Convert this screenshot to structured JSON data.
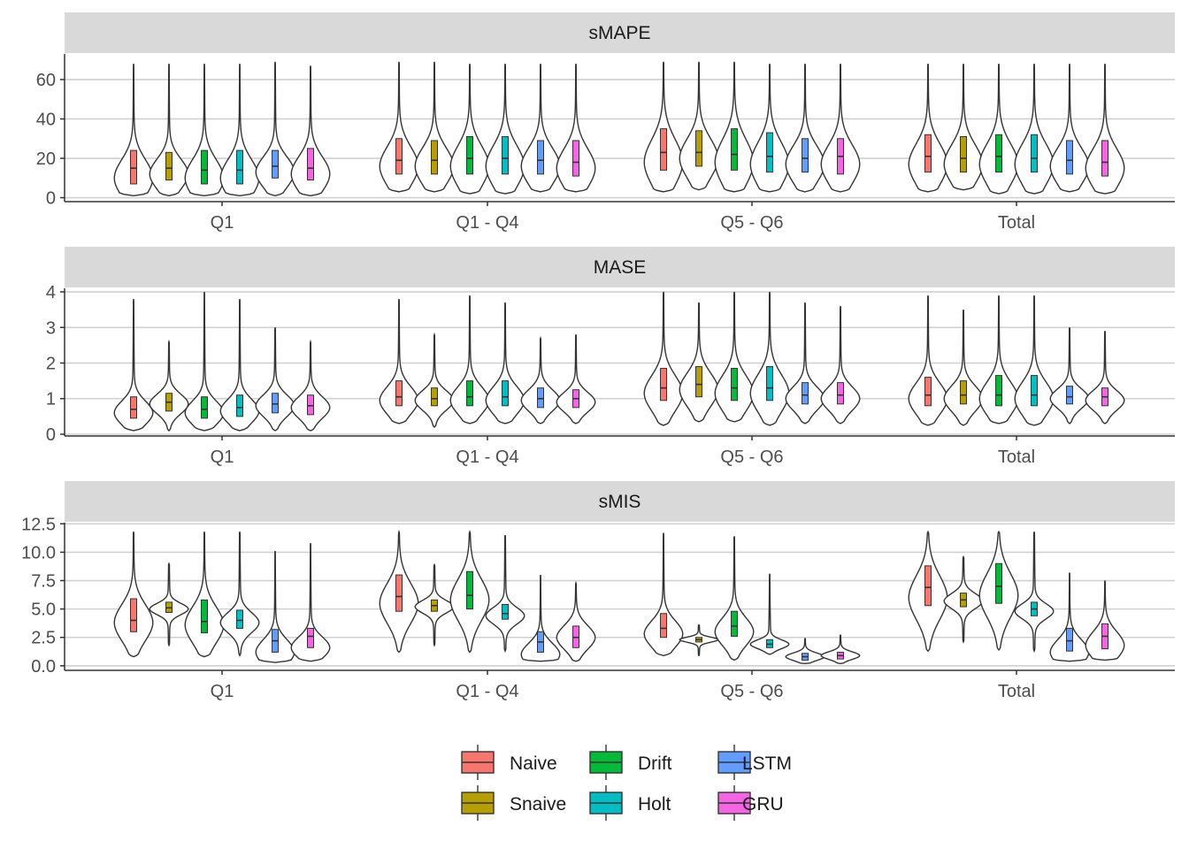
{
  "chart_data": {
    "type": "violin",
    "groups": [
      "Q1",
      "Q1 - Q4",
      "Q5 - Q6",
      "Total"
    ],
    "legend": {
      "position": "bottom",
      "entries": [
        {
          "name": "Naive",
          "color": "#F8766D"
        },
        {
          "name": "Snaive",
          "color": "#B79F00"
        },
        {
          "name": "Drift",
          "color": "#00BA38"
        },
        {
          "name": "Holt",
          "color": "#00BFC4"
        },
        {
          "name": "LSTM",
          "color": "#619CFF"
        },
        {
          "name": "GRU",
          "color": "#F564E3"
        }
      ]
    },
    "grid": true,
    "panels": [
      {
        "title": "sMAPE",
        "ylim": [
          -2,
          73
        ],
        "yticks": [
          0,
          20,
          40,
          60
        ],
        "ytick_labels": [
          "0",
          "20",
          "40",
          "60"
        ],
        "series": [
          {
            "group": "Q1",
            "stats": [
              {
                "min": 1,
                "max": 68,
                "q1": 7,
                "median": 15,
                "q3": 24,
                "mode": 10
              },
              {
                "min": 1,
                "max": 68,
                "q1": 9,
                "median": 15,
                "q3": 23,
                "mode": 12
              },
              {
                "min": 1,
                "max": 68,
                "q1": 7,
                "median": 14,
                "q3": 24,
                "mode": 10
              },
              {
                "min": 1,
                "max": 68,
                "q1": 7,
                "median": 14,
                "q3": 24,
                "mode": 10
              },
              {
                "min": 1,
                "max": 69,
                "q1": 10,
                "median": 16,
                "q3": 24,
                "mode": 13
              },
              {
                "min": 1,
                "max": 67,
                "q1": 9,
                "median": 15,
                "q3": 25,
                "mode": 12
              }
            ]
          },
          {
            "group": "Q1 - Q4",
            "stats": [
              {
                "min": 3,
                "max": 69,
                "q1": 12,
                "median": 19,
                "q3": 30,
                "mode": 16
              },
              {
                "min": 3,
                "max": 69,
                "q1": 12,
                "median": 19,
                "q3": 29,
                "mode": 16
              },
              {
                "min": 2,
                "max": 68,
                "q1": 12,
                "median": 20,
                "q3": 31,
                "mode": 16
              },
              {
                "min": 2,
                "max": 68,
                "q1": 12,
                "median": 20,
                "q3": 31,
                "mode": 16
              },
              {
                "min": 3,
                "max": 68,
                "q1": 12,
                "median": 19,
                "q3": 29,
                "mode": 16
              },
              {
                "min": 3,
                "max": 68,
                "q1": 11,
                "median": 18,
                "q3": 29,
                "mode": 15
              }
            ]
          },
          {
            "group": "Q5 - Q6",
            "stats": [
              {
                "min": 3,
                "max": 69,
                "q1": 14,
                "median": 23,
                "q3": 35,
                "mode": 18
              },
              {
                "min": 4,
                "max": 69,
                "q1": 16,
                "median": 23,
                "q3": 34,
                "mode": 20
              },
              {
                "min": 3,
                "max": 69,
                "q1": 14,
                "median": 22,
                "q3": 35,
                "mode": 18
              },
              {
                "min": 3,
                "max": 68,
                "q1": 13,
                "median": 21,
                "q3": 33,
                "mode": 17
              },
              {
                "min": 3,
                "max": 68,
                "q1": 13,
                "median": 20,
                "q3": 30,
                "mode": 17
              },
              {
                "min": 3,
                "max": 68,
                "q1": 12,
                "median": 21,
                "q3": 30,
                "mode": 17
              }
            ]
          },
          {
            "group": "Total",
            "stats": [
              {
                "min": 3,
                "max": 68,
                "q1": 13,
                "median": 21,
                "q3": 32,
                "mode": 17
              },
              {
                "min": 4,
                "max": 68,
                "q1": 13,
                "median": 20,
                "q3": 31,
                "mode": 17
              },
              {
                "min": 2,
                "max": 68,
                "q1": 13,
                "median": 21,
                "q3": 32,
                "mode": 17
              },
              {
                "min": 2,
                "max": 68,
                "q1": 13,
                "median": 20,
                "q3": 32,
                "mode": 17
              },
              {
                "min": 3,
                "max": 68,
                "q1": 12,
                "median": 19,
                "q3": 29,
                "mode": 16
              },
              {
                "min": 2,
                "max": 68,
                "q1": 11,
                "median": 18,
                "q3": 29,
                "mode": 15
              }
            ]
          }
        ]
      },
      {
        "title": "MASE",
        "ylim": [
          -0.05,
          4.1
        ],
        "yticks": [
          0,
          1,
          2,
          3,
          4
        ],
        "ytick_labels": [
          "0",
          "1",
          "2",
          "3",
          "4"
        ],
        "series": [
          {
            "group": "Q1",
            "stats": [
              {
                "min": 0.1,
                "max": 3.8,
                "q1": 0.45,
                "median": 0.7,
                "q3": 1.05,
                "mode": 0.6
              },
              {
                "min": 0.1,
                "max": 2.6,
                "q1": 0.65,
                "median": 0.9,
                "q3": 1.15,
                "mode": 0.85
              },
              {
                "min": 0.1,
                "max": 4.0,
                "q1": 0.45,
                "median": 0.7,
                "q3": 1.05,
                "mode": 0.6
              },
              {
                "min": 0.1,
                "max": 3.8,
                "q1": 0.5,
                "median": 0.75,
                "q3": 1.1,
                "mode": 0.65
              },
              {
                "min": 0.1,
                "max": 3.0,
                "q1": 0.6,
                "median": 0.85,
                "q3": 1.15,
                "mode": 0.8
              },
              {
                "min": 0.1,
                "max": 2.6,
                "q1": 0.55,
                "median": 0.8,
                "q3": 1.1,
                "mode": 0.75
              }
            ]
          },
          {
            "group": "Q1 - Q4",
            "stats": [
              {
                "min": 0.3,
                "max": 3.8,
                "q1": 0.8,
                "median": 1.05,
                "q3": 1.5,
                "mode": 0.95
              },
              {
                "min": 0.2,
                "max": 2.8,
                "q1": 0.8,
                "median": 1.0,
                "q3": 1.3,
                "mode": 0.95
              },
              {
                "min": 0.3,
                "max": 3.9,
                "q1": 0.8,
                "median": 1.05,
                "q3": 1.5,
                "mode": 0.95
              },
              {
                "min": 0.3,
                "max": 3.7,
                "q1": 0.8,
                "median": 1.05,
                "q3": 1.5,
                "mode": 0.95
              },
              {
                "min": 0.3,
                "max": 2.7,
                "q1": 0.75,
                "median": 1.0,
                "q3": 1.3,
                "mode": 0.95
              },
              {
                "min": 0.3,
                "max": 2.8,
                "q1": 0.75,
                "median": 1.0,
                "q3": 1.25,
                "mode": 0.9
              }
            ]
          },
          {
            "group": "Q5 - Q6",
            "stats": [
              {
                "min": 0.25,
                "max": 4.0,
                "q1": 0.95,
                "median": 1.3,
                "q3": 1.85,
                "mode": 1.15
              },
              {
                "min": 0.35,
                "max": 3.7,
                "q1": 1.05,
                "median": 1.4,
                "q3": 1.9,
                "mode": 1.25
              },
              {
                "min": 0.35,
                "max": 4.0,
                "q1": 0.95,
                "median": 1.3,
                "q3": 1.85,
                "mode": 1.15
              },
              {
                "min": 0.25,
                "max": 4.0,
                "q1": 0.95,
                "median": 1.3,
                "q3": 1.9,
                "mode": 1.15
              },
              {
                "min": 0.3,
                "max": 3.7,
                "q1": 0.85,
                "median": 1.1,
                "q3": 1.45,
                "mode": 1.0
              },
              {
                "min": 0.3,
                "max": 3.6,
                "q1": 0.85,
                "median": 1.1,
                "q3": 1.45,
                "mode": 1.0
              }
            ]
          },
          {
            "group": "Total",
            "stats": [
              {
                "min": 0.25,
                "max": 3.9,
                "q1": 0.8,
                "median": 1.1,
                "q3": 1.6,
                "mode": 1.0
              },
              {
                "min": 0.25,
                "max": 3.5,
                "q1": 0.85,
                "median": 1.1,
                "q3": 1.5,
                "mode": 1.0
              },
              {
                "min": 0.3,
                "max": 3.9,
                "q1": 0.8,
                "median": 1.1,
                "q3": 1.65,
                "mode": 1.0
              },
              {
                "min": 0.25,
                "max": 3.9,
                "q1": 0.8,
                "median": 1.1,
                "q3": 1.65,
                "mode": 1.0
              },
              {
                "min": 0.3,
                "max": 3.0,
                "q1": 0.85,
                "median": 1.05,
                "q3": 1.35,
                "mode": 1.0
              },
              {
                "min": 0.3,
                "max": 2.9,
                "q1": 0.8,
                "median": 1.05,
                "q3": 1.3,
                "mode": 0.95
              }
            ]
          }
        ]
      },
      {
        "title": "sMIS",
        "ylim": [
          -0.4,
          12.6
        ],
        "yticks": [
          0,
          2.5,
          5,
          7.5,
          10,
          12.5
        ],
        "ytick_labels": [
          "0.0",
          "2.5",
          "5.0",
          "7.5",
          "10.0",
          "12.5"
        ],
        "series": [
          {
            "group": "Q1",
            "stats": [
              {
                "min": 0.8,
                "max": 11.8,
                "q1": 3.0,
                "median": 4.0,
                "q3": 5.9,
                "mode": 3.8
              },
              {
                "min": 1.8,
                "max": 9.0,
                "q1": 4.7,
                "median": 5.1,
                "q3": 5.6,
                "mode": 5.0
              },
              {
                "min": 0.8,
                "max": 11.8,
                "q1": 2.9,
                "median": 3.9,
                "q3": 5.8,
                "mode": 3.6
              },
              {
                "min": 0.9,
                "max": 11.8,
                "q1": 3.3,
                "median": 4.0,
                "q3": 4.9,
                "mode": 3.8
              },
              {
                "min": 0.3,
                "max": 10.1,
                "q1": 1.2,
                "median": 2.2,
                "q3": 3.2,
                "mode": 1.2
              },
              {
                "min": 0.4,
                "max": 10.8,
                "q1": 1.6,
                "median": 2.6,
                "q3": 3.3,
                "mode": 1.6
              }
            ]
          },
          {
            "group": "Q1 - Q4",
            "stats": [
              {
                "min": 1.2,
                "max": 11.8,
                "q1": 4.8,
                "median": 6.1,
                "q3": 8.0,
                "mode": 5.5
              },
              {
                "min": 1.8,
                "max": 8.9,
                "q1": 4.8,
                "median": 5.3,
                "q3": 5.8,
                "mode": 5.2
              },
              {
                "min": 1.2,
                "max": 11.8,
                "q1": 5.0,
                "median": 6.2,
                "q3": 8.3,
                "mode": 5.8
              },
              {
                "min": 1.3,
                "max": 11.5,
                "q1": 4.1,
                "median": 4.6,
                "q3": 5.4,
                "mode": 4.4
              },
              {
                "min": 0.4,
                "max": 8.0,
                "q1": 1.2,
                "median": 2.1,
                "q3": 3.0,
                "mode": 1.0
              },
              {
                "min": 0.4,
                "max": 7.3,
                "q1": 1.6,
                "median": 2.5,
                "q3": 3.5,
                "mode": 2.5
              }
            ]
          },
          {
            "group": "Q5 - Q6",
            "stats": [
              {
                "min": 0.9,
                "max": 11.7,
                "q1": 2.5,
                "median": 3.3,
                "q3": 4.6,
                "mode": 2.8
              },
              {
                "min": 0.9,
                "max": 3.6,
                "q1": 2.1,
                "median": 2.3,
                "q3": 2.5,
                "mode": 2.3
              },
              {
                "min": 0.5,
                "max": 11.4,
                "q1": 2.6,
                "median": 3.5,
                "q3": 4.8,
                "mode": 3.0
              },
              {
                "min": 1.0,
                "max": 8.1,
                "q1": 1.6,
                "median": 1.9,
                "q3": 2.3,
                "mode": 1.9
              },
              {
                "min": 0.2,
                "max": 2.4,
                "q1": 0.5,
                "median": 0.8,
                "q3": 1.1,
                "mode": 0.8
              },
              {
                "min": 0.2,
                "max": 2.7,
                "q1": 0.6,
                "median": 0.9,
                "q3": 1.2,
                "mode": 0.9
              }
            ]
          },
          {
            "group": "Total",
            "stats": [
              {
                "min": 1.3,
                "max": 11.8,
                "q1": 5.3,
                "median": 6.9,
                "q3": 8.8,
                "mode": 6.0
              },
              {
                "min": 2.1,
                "max": 9.6,
                "q1": 5.2,
                "median": 5.8,
                "q3": 6.4,
                "mode": 5.7
              },
              {
                "min": 1.4,
                "max": 11.8,
                "q1": 5.5,
                "median": 7.0,
                "q3": 9.0,
                "mode": 6.2
              },
              {
                "min": 1.3,
                "max": 11.8,
                "q1": 4.4,
                "median": 5.0,
                "q3": 5.6,
                "mode": 4.8
              },
              {
                "min": 0.4,
                "max": 8.2,
                "q1": 1.3,
                "median": 2.2,
                "q3": 3.3,
                "mode": 1.2
              },
              {
                "min": 0.5,
                "max": 7.5,
                "q1": 1.5,
                "median": 2.6,
                "q3": 3.7,
                "mode": 1.8
              }
            ]
          }
        ]
      }
    ]
  }
}
